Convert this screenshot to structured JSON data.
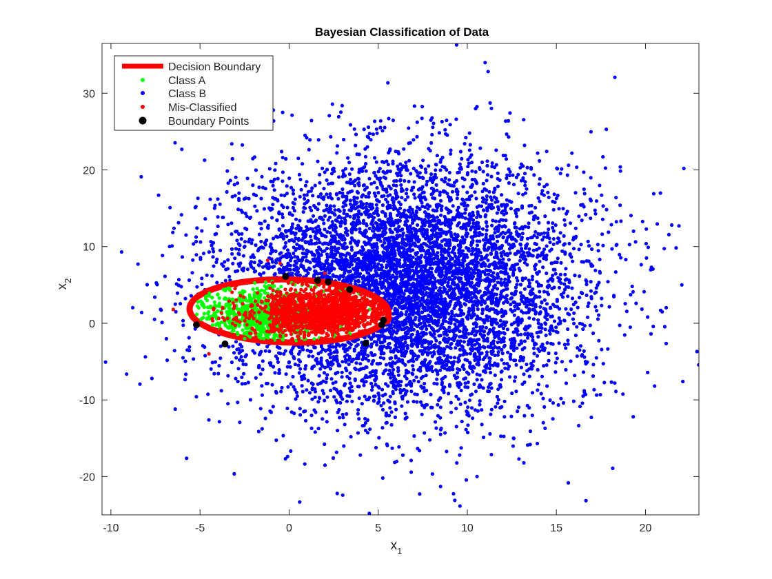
{
  "chart_data": {
    "type": "scatter",
    "title": "Bayesian Classification of Data",
    "xlabel": {
      "base": "x",
      "sub": "1"
    },
    "ylabel": {
      "base": "x",
      "sub": "2"
    },
    "xlim": [
      -10.5,
      23
    ],
    "ylim": [
      -25,
      36.5
    ],
    "xticks": [
      -10,
      -5,
      0,
      5,
      10,
      15,
      20
    ],
    "yticks": [
      -20,
      -10,
      0,
      10,
      20,
      30
    ],
    "grid": false,
    "legend_position": "top-left",
    "legend": [
      {
        "label": "Decision Boundary",
        "marker": "thick-line",
        "color": "#ff0000"
      },
      {
        "label": "Class A",
        "marker": "dot",
        "color": "#00ff00"
      },
      {
        "label": "Class B",
        "marker": "dot",
        "color": "#0000ff"
      },
      {
        "label": "Mis-Classified",
        "marker": "dot",
        "color": "#ff0000"
      },
      {
        "label": "Boundary Points",
        "marker": "large-dot",
        "color": "#000000"
      }
    ],
    "decision_boundary": {
      "shape": "ellipse",
      "center": [
        0,
        1.6
      ],
      "semi_axis_x": 5.6,
      "semi_axis_y": 4.1,
      "rotation_deg": -6,
      "color": "#ff0000"
    },
    "series": [
      {
        "name": "Class A",
        "color": "#00ff00",
        "distribution": {
          "mean": [
            -1.5,
            1.0
          ],
          "std": [
            2.2,
            1.9
          ],
          "count": 900,
          "region": "inside-boundary"
        },
        "points": [
          [
            -3.5,
            1.5
          ],
          [
            -2,
            0.5
          ],
          [
            -1,
            2
          ],
          [
            0.5,
            -1
          ],
          [
            -4,
            0
          ],
          [
            -2.5,
            -2
          ],
          [
            1,
            1.5
          ]
        ]
      },
      {
        "name": "Class B",
        "color": "#0000ff",
        "distribution": {
          "mean": [
            6.5,
            5.0
          ],
          "std": [
            5.0,
            8.0
          ],
          "count": 6000,
          "region": "outside-boundary"
        },
        "points": [
          [
            22.1,
            -7.6
          ],
          [
            9.4,
            36.3
          ],
          [
            11,
            34
          ],
          [
            4.5,
            -24.8
          ],
          [
            -9.4,
            9.3
          ],
          [
            19.3,
            4.1
          ],
          [
            -8.3,
            19.1
          ],
          [
            -7.7,
            -7.2
          ],
          [
            2.7,
            -22.2
          ],
          [
            8.5,
            -21.3
          ],
          [
            16.5,
            -9.5
          ],
          [
            17.8,
            25.3
          ]
        ]
      },
      {
        "name": "Mis-Classified",
        "color": "#ff0000",
        "distribution": {
          "mean": [
            1.5,
            1.5
          ],
          "std": [
            2.4,
            1.7
          ],
          "count": 1500,
          "region": "inside-boundary-right"
        },
        "points": [
          [
            -0.5,
            7.8
          ],
          [
            -1.2,
            8.2
          ],
          [
            -6.5,
            1.8
          ],
          [
            -4.5,
            -4
          ],
          [
            2,
            6.5
          ],
          [
            5,
            -0.5
          ]
        ]
      },
      {
        "name": "Boundary Points",
        "color": "#000000",
        "points": [
          [
            -0.2,
            6.1
          ],
          [
            1.6,
            5.6
          ],
          [
            2.2,
            5.4
          ],
          [
            3.4,
            4.4
          ],
          [
            5.3,
            0.4
          ],
          [
            5.2,
            -0.2
          ],
          [
            4.3,
            -2.6
          ],
          [
            -3.6,
            -2.7
          ],
          [
            -5.2,
            -0.2
          ]
        ]
      }
    ]
  }
}
